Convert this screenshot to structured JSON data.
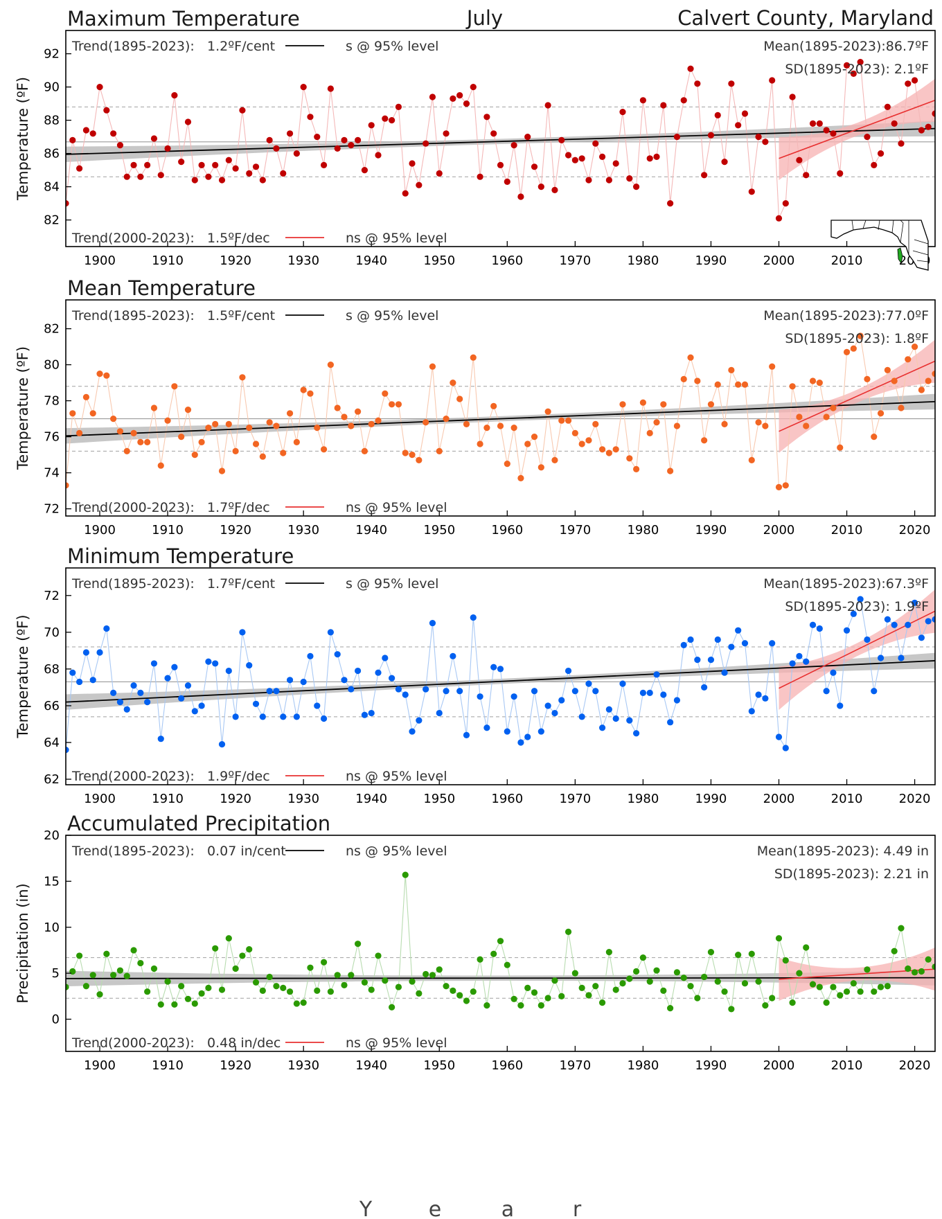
{
  "header": {
    "center": "July",
    "right": "Calvert County, Maryland"
  },
  "xaxis": {
    "label_letters": [
      "Y",
      "e",
      "a",
      "r"
    ],
    "range": [
      1895,
      2023
    ],
    "ticks": [
      1900,
      1910,
      1920,
      1930,
      1940,
      1950,
      1960,
      1970,
      1980,
      1990,
      2000,
      2010,
      2020
    ]
  },
  "colors": {
    "max": "#c00000",
    "max_line": "#f4b8b8",
    "mean": "#f26522",
    "mean_line": "#f8c9b0",
    "min": "#0060f0",
    "min_line": "#a8c8f4",
    "precip": "#2a9a00",
    "precip_line": "#b8dcb0",
    "trend_long": "#000000",
    "trend_recent": "#e83030",
    "band_long": "#b4b4b4",
    "band_recent": "#f7b2b2"
  },
  "chart_data": [
    {
      "type": "scatter",
      "title": "Maximum Temperature",
      "ylabel": "Temperature (ºF)",
      "ylim": [
        80.4,
        93.4
      ],
      "yticks": [
        82,
        84,
        86,
        88,
        90,
        92
      ],
      "x_start": 1895,
      "series": [
        {
          "values": [
            83.0,
            86.8,
            85.1,
            87.4,
            87.2,
            90.0,
            88.6,
            87.2,
            86.5,
            84.6,
            85.3,
            84.6,
            85.3,
            86.9,
            84.7,
            86.3,
            89.5,
            85.5,
            87.9,
            84.4,
            85.3,
            84.6,
            85.3,
            84.4,
            85.6,
            85.1,
            88.6,
            84.8,
            85.2,
            84.4,
            86.8,
            86.3,
            84.8,
            87.2,
            86.0,
            90.0,
            88.2,
            87.0,
            85.3,
            89.9,
            86.3,
            86.8,
            86.5,
            86.8,
            85.0,
            87.7,
            85.9,
            88.1,
            88.0,
            88.8,
            83.6,
            85.4,
            84.1,
            86.6,
            89.4,
            84.8,
            87.2,
            89.3,
            89.5,
            89.0,
            90.0,
            84.6,
            88.2,
            87.2,
            85.3,
            84.3,
            86.5,
            83.4,
            87.0,
            85.2,
            84.0,
            88.9,
            83.8,
            86.8,
            85.9,
            85.6,
            85.7,
            84.4,
            86.6,
            85.8,
            84.4,
            85.4,
            88.5,
            84.5,
            84.0,
            89.2,
            85.7,
            85.8,
            88.9,
            83.0,
            87.0,
            89.2,
            91.1,
            90.2,
            84.7,
            87.1,
            88.3,
            85.5,
            90.2,
            87.7,
            88.4,
            83.7,
            87.0,
            86.7,
            90.4,
            82.1,
            83.0,
            89.4,
            85.6,
            84.7,
            87.8,
            87.8,
            87.4,
            87.2,
            84.8,
            91.3,
            90.8,
            91.5,
            87.0,
            85.3,
            86.0,
            88.8,
            87.8,
            86.6,
            90.2,
            90.4,
            87.4,
            87.6,
            88.4
          ]
        }
      ],
      "mean": 86.7,
      "sd": 2.1,
      "trend_long": {
        "range": [
          1895,
          2023
        ],
        "y": [
          85.95,
          87.5
        ],
        "label": "Trend(1895-2023):",
        "value": "1.2ºF/cent",
        "sig": "s @ 95% level"
      },
      "trend_recent": {
        "range": [
          2000,
          2023
        ],
        "y": [
          85.7,
          89.2
        ],
        "label": "Trend(2000-2023):",
        "value": "1.5ºF/dec",
        "sig": "ns @ 95% level"
      },
      "mean_text": "Mean(1895-2023):86.7ºF",
      "sd_text": "SD(1895-2023): 2.1ºF",
      "color_key": "max"
    },
    {
      "type": "scatter",
      "title": "Mean Temperature",
      "ylabel": "Temperature (ºF)",
      "ylim": [
        71.6,
        83.6
      ],
      "yticks": [
        72,
        74,
        76,
        78,
        80,
        82
      ],
      "x_start": 1895,
      "series": [
        {
          "values": [
            73.3,
            77.3,
            76.2,
            78.2,
            77.3,
            79.5,
            79.4,
            77.0,
            76.3,
            75.2,
            76.2,
            75.7,
            75.7,
            77.6,
            74.4,
            76.9,
            78.8,
            76.0,
            77.5,
            75.0,
            75.7,
            76.5,
            76.7,
            74.1,
            76.7,
            75.2,
            79.3,
            76.5,
            75.6,
            74.9,
            76.8,
            76.6,
            75.1,
            77.3,
            75.7,
            78.6,
            78.4,
            76.5,
            75.3,
            80.0,
            77.6,
            77.1,
            76.6,
            77.4,
            75.2,
            76.7,
            76.9,
            78.4,
            77.8,
            77.8,
            75.1,
            75.0,
            74.7,
            76.8,
            79.9,
            75.2,
            77.0,
            79.0,
            78.1,
            76.7,
            80.4,
            75.6,
            76.5,
            77.7,
            76.6,
            74.5,
            76.5,
            73.7,
            75.6,
            76.0,
            74.3,
            77.4,
            74.7,
            76.9,
            76.9,
            76.2,
            75.6,
            75.8,
            76.7,
            75.3,
            75.1,
            75.3,
            77.8,
            74.8,
            74.2,
            77.9,
            76.2,
            76.8,
            77.8,
            74.1,
            76.6,
            79.2,
            80.4,
            79.1,
            75.8,
            77.8,
            78.9,
            76.7,
            79.7,
            78.9,
            78.9,
            74.7,
            76.8,
            76.6,
            79.9,
            73.2,
            73.3,
            78.8,
            77.1,
            76.6,
            79.1,
            79.0,
            77.1,
            77.6,
            75.4,
            80.7,
            80.9,
            81.6,
            79.2,
            76.0,
            77.3,
            79.7,
            79.1,
            77.6,
            80.3,
            81.0,
            78.6,
            79.1,
            79.5
          ]
        }
      ],
      "mean": 77.0,
      "sd": 1.8,
      "trend_long": {
        "range": [
          1895,
          2023
        ],
        "y": [
          76.05,
          77.95
        ],
        "label": "Trend(1895-2023):",
        "value": "1.5ºF/cent",
        "sig": "s @ 95% level"
      },
      "trend_recent": {
        "range": [
          2000,
          2023
        ],
        "y": [
          76.3,
          80.2
        ],
        "label": "Trend(2000-2023):",
        "value": "1.7ºF/dec",
        "sig": "ns @ 95% level"
      },
      "mean_text": "Mean(1895-2023):77.0ºF",
      "sd_text": "SD(1895-2023): 1.8ºF",
      "color_key": "mean"
    },
    {
      "type": "scatter",
      "title": "Minimum Temperature",
      "ylabel": "Temperature (ºF)",
      "ylim": [
        61.7,
        73.5
      ],
      "yticks": [
        62,
        64,
        66,
        68,
        70,
        72
      ],
      "x_start": 1895,
      "series": [
        {
          "values": [
            63.6,
            67.8,
            67.3,
            68.9,
            67.4,
            68.9,
            70.2,
            66.7,
            66.2,
            65.8,
            67.1,
            66.7,
            66.2,
            68.3,
            64.2,
            67.5,
            68.1,
            66.4,
            67.1,
            65.7,
            66.0,
            68.4,
            68.3,
            63.9,
            67.9,
            65.4,
            70.0,
            68.2,
            66.1,
            65.4,
            66.8,
            66.8,
            65.4,
            67.4,
            65.4,
            67.3,
            68.7,
            66.0,
            65.3,
            70.0,
            68.8,
            67.4,
            66.9,
            67.9,
            65.5,
            65.6,
            67.8,
            68.6,
            67.5,
            66.9,
            66.6,
            64.6,
            65.2,
            66.9,
            70.5,
            65.6,
            66.8,
            68.7,
            66.8,
            64.4,
            70.8,
            66.5,
            64.8,
            68.1,
            68.0,
            64.6,
            66.5,
            64.0,
            64.3,
            66.8,
            64.6,
            66.0,
            65.6,
            66.3,
            67.9,
            66.8,
            65.4,
            67.2,
            66.8,
            64.8,
            65.8,
            65.3,
            67.2,
            65.2,
            64.5,
            66.7,
            66.7,
            67.7,
            66.6,
            65.1,
            66.3,
            69.3,
            69.6,
            68.5,
            67.0,
            68.5,
            69.6,
            67.8,
            69.2,
            70.1,
            69.4,
            65.7,
            66.6,
            66.4,
            69.4,
            64.3,
            63.7,
            68.3,
            68.7,
            68.4,
            70.4,
            70.2,
            66.8,
            67.8,
            66.0,
            70.1,
            71.0,
            71.8,
            69.6,
            66.8,
            68.6,
            70.7,
            70.4,
            68.6,
            70.4,
            71.6,
            69.7,
            70.6,
            70.7
          ]
        }
      ],
      "mean": 67.3,
      "sd": 1.9,
      "trend_long": {
        "range": [
          1895,
          2023
        ],
        "y": [
          66.2,
          68.45
        ],
        "label": "Trend(1895-2023):",
        "value": "1.7ºF/cent",
        "sig": "s @ 95% level"
      },
      "trend_recent": {
        "range": [
          2000,
          2023
        ],
        "y": [
          66.95,
          71.15
        ],
        "label": "Trend(2000-2023):",
        "value": "1.9ºF/dec",
        "sig": "ns @ 95% level"
      },
      "mean_text": "Mean(1895-2023):67.3ºF",
      "sd_text": "SD(1895-2023): 1.9ºF",
      "color_key": "min"
    },
    {
      "type": "scatter",
      "title": "Accumulated Precipitation",
      "ylabel": "Precipitation (in)",
      "ylim": [
        -3.5,
        20
      ],
      "yticks": [
        0,
        5,
        10,
        15,
        20
      ],
      "x_start": 1895,
      "series": [
        {
          "values": [
            3.5,
            5.2,
            6.9,
            3.6,
            4.8,
            2.7,
            7.1,
            4.8,
            5.3,
            4.7,
            7.5,
            6.1,
            3.0,
            5.5,
            1.6,
            4.1,
            1.6,
            3.6,
            2.2,
            1.7,
            2.8,
            3.4,
            7.7,
            3.2,
            8.8,
            5.5,
            6.9,
            7.6,
            4.0,
            3.1,
            4.6,
            3.6,
            3.4,
            3.0,
            1.7,
            1.8,
            5.6,
            3.1,
            6.2,
            3.0,
            4.8,
            3.7,
            4.8,
            8.2,
            4.0,
            3.2,
            6.9,
            4.2,
            1.3,
            3.5,
            15.7,
            4.1,
            2.8,
            4.9,
            4.8,
            5.4,
            3.6,
            3.1,
            2.6,
            2.0,
            3.0,
            6.5,
            1.5,
            7.1,
            8.5,
            5.9,
            2.2,
            1.5,
            3.4,
            2.9,
            1.5,
            2.3,
            4.2,
            2.5,
            9.5,
            5.0,
            3.4,
            2.6,
            3.6,
            1.8,
            7.3,
            3.2,
            3.9,
            4.4,
            5.2,
            6.7,
            4.1,
            5.3,
            3.1,
            1.2,
            5.1,
            4.5,
            3.6,
            2.3,
            4.6,
            7.3,
            4.1,
            3.0,
            1.1,
            7.0,
            3.9,
            7.1,
            4.1,
            1.5,
            2.3,
            8.8,
            6.4,
            1.8,
            5.0,
            7.8,
            3.8,
            3.5,
            1.8,
            3.5,
            2.6,
            3.0,
            3.9,
            3.0,
            5.4,
            3.0,
            3.5,
            3.6,
            7.4,
            9.9,
            5.5,
            5.1,
            5.2,
            6.5,
            5.7
          ]
        }
      ],
      "mean": 4.49,
      "sd": 2.21,
      "trend_long": {
        "range": [
          1895,
          2023
        ],
        "y": [
          4.42,
          4.51
        ],
        "label": "Trend(1895-2023):",
        "value": "0.07 in/cent",
        "sig": "ns @ 95% level"
      },
      "trend_recent": {
        "range": [
          2000,
          2023
        ],
        "y": [
          4.35,
          5.45
        ],
        "label": "Trend(2000-2023):",
        "value": "0.48 in/dec",
        "sig": "ns @ 95% level"
      },
      "mean_text": "Mean(1895-2023): 4.49 in",
      "sd_text": "SD(1895-2023): 2.21 in",
      "color_key": "precip"
    }
  ]
}
